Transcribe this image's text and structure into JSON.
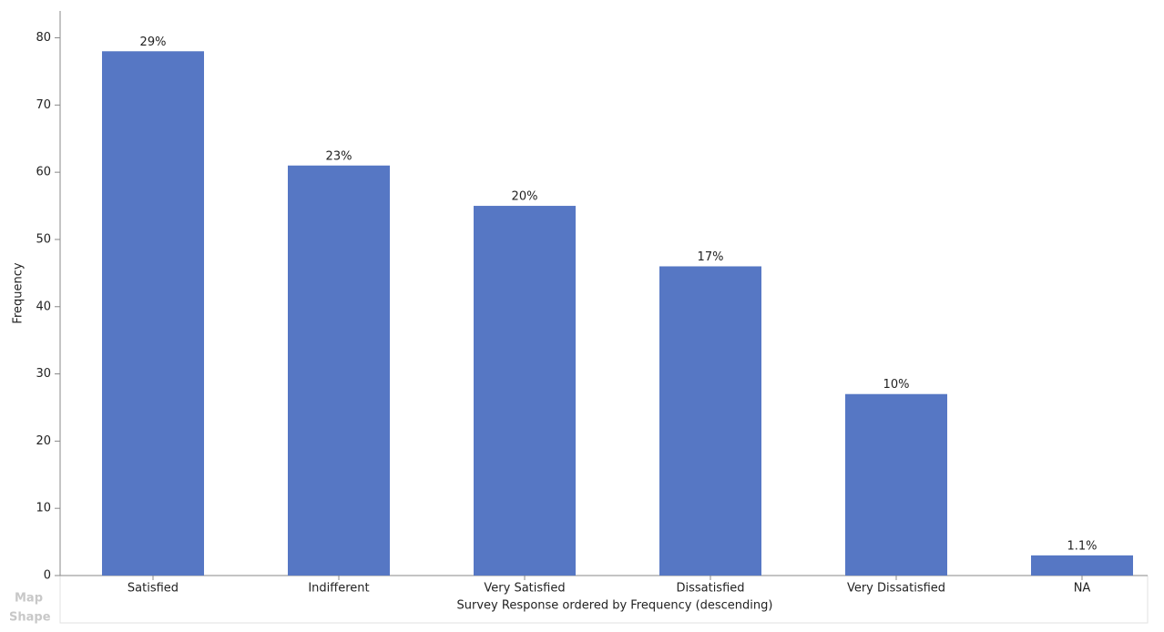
{
  "chart_data": {
    "type": "bar",
    "categories": [
      "Satisfied",
      "Indifferent",
      "Very Satisfied",
      "Dissatisfied",
      "Very Dissatisfied",
      "NA"
    ],
    "values": [
      78,
      61,
      55,
      46,
      27,
      3
    ],
    "percent_labels": [
      "29%",
      "23%",
      "20%",
      "17%",
      "10%",
      "1.1%"
    ],
    "color": "#5677c4",
    "y_label": "Frequency",
    "x_label": "Survey Response ordered by Frequency (descending)",
    "ylim": [
      0,
      84
    ],
    "yticks": [
      0,
      10,
      20,
      30,
      40,
      50,
      60,
      70,
      80
    ]
  },
  "background_labels": [
    "Map",
    "Shape"
  ]
}
